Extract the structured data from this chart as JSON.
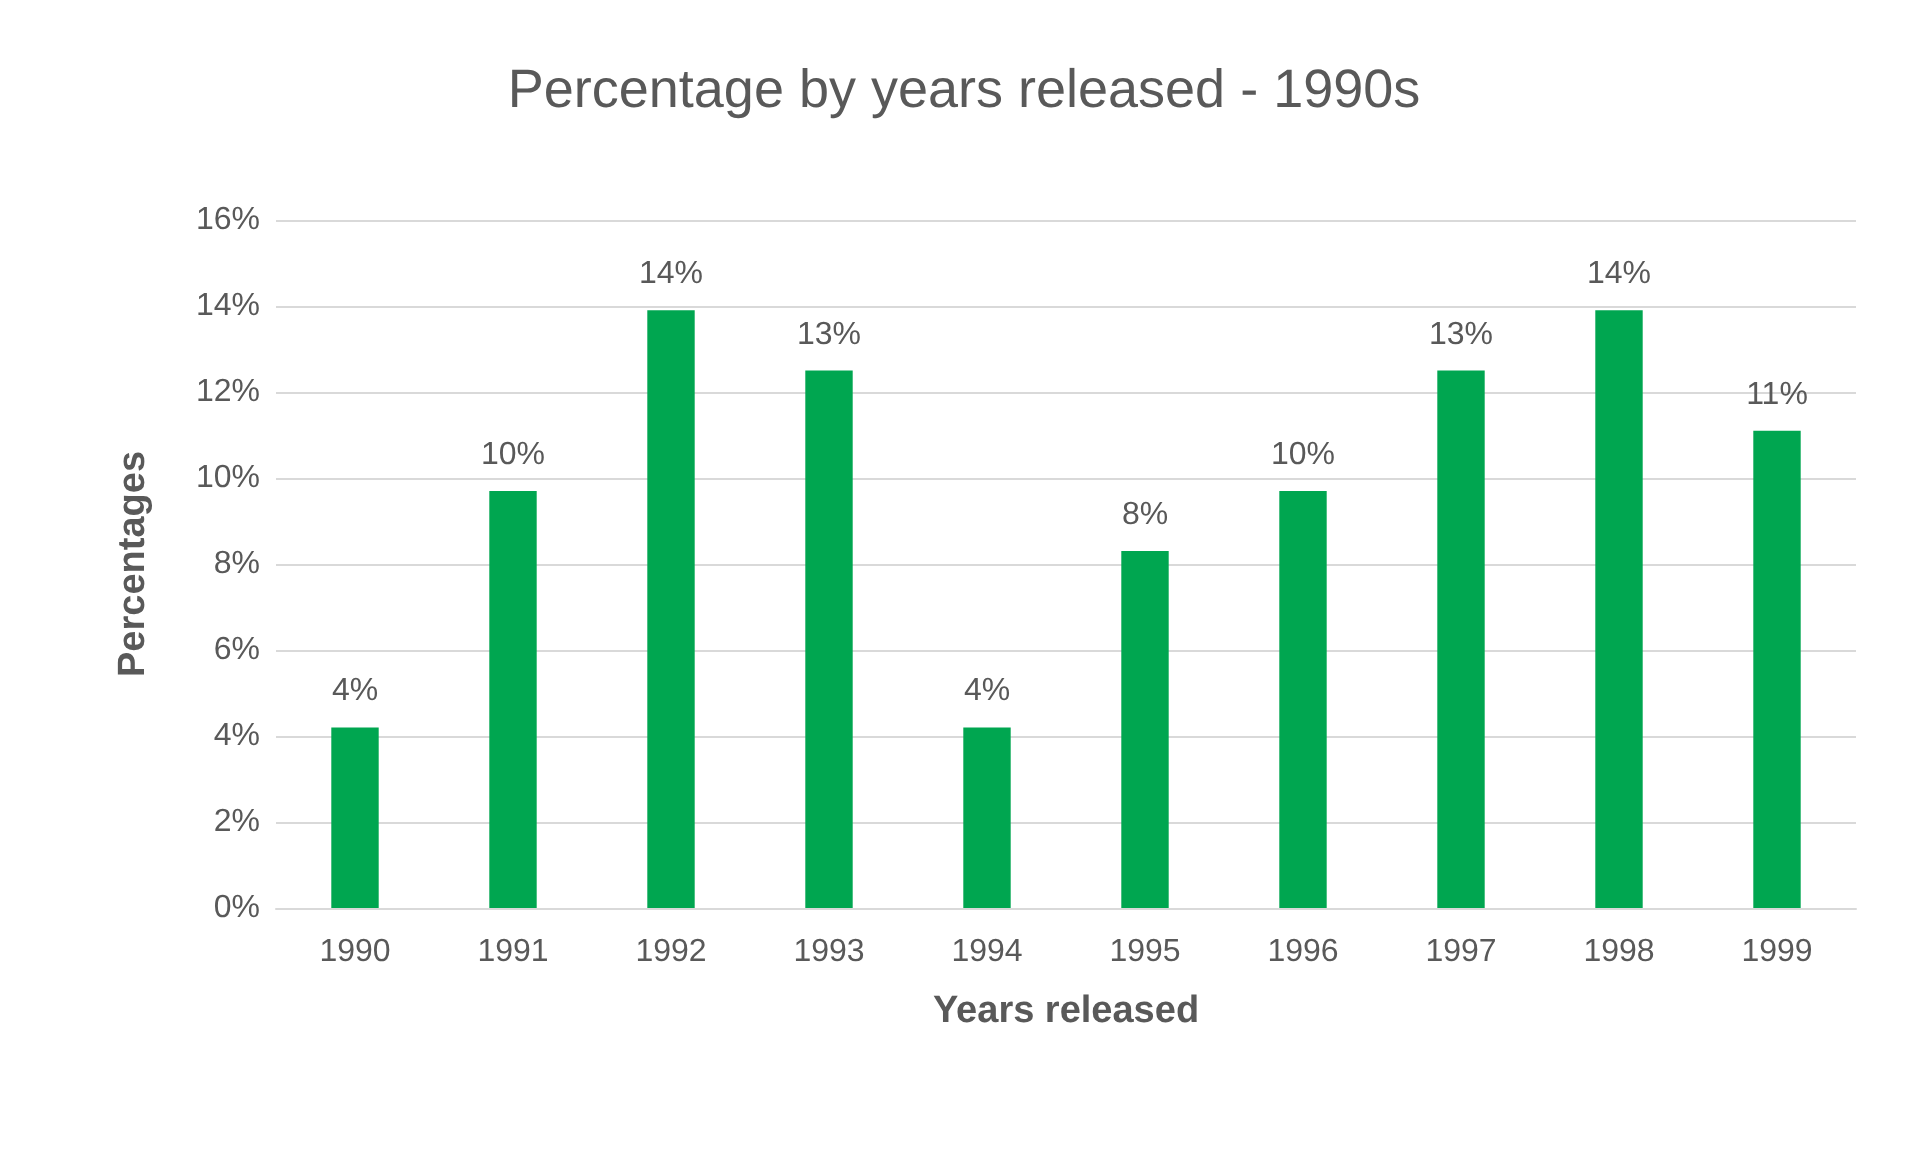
{
  "chart_data": {
    "type": "bar",
    "title": "Percentage by years released - 1990s",
    "xlabel": "Years released",
    "ylabel": "Percentages",
    "categories": [
      "1990",
      "1991",
      "1992",
      "1993",
      "1994",
      "1995",
      "1996",
      "1997",
      "1998",
      "1999"
    ],
    "values": [
      4.2,
      9.7,
      13.9,
      12.5,
      4.2,
      8.3,
      9.7,
      12.5,
      13.9,
      11.1
    ],
    "value_labels": [
      "4%",
      "10%",
      "14%",
      "13%",
      "4%",
      "8%",
      "10%",
      "13%",
      "14%",
      "11%"
    ],
    "color": "#00a650",
    "ylim": [
      0,
      16
    ],
    "yticks": [
      {
        "value": 0,
        "label": "0%"
      },
      {
        "value": 2,
        "label": "2%"
      },
      {
        "value": 4,
        "label": "4%"
      },
      {
        "value": 6,
        "label": "6%"
      },
      {
        "value": 8,
        "label": "8%"
      },
      {
        "value": 10,
        "label": "10%"
      },
      {
        "value": 12,
        "label": "12%"
      },
      {
        "value": 14,
        "label": "14%"
      },
      {
        "value": 16,
        "label": "16%"
      }
    ],
    "grid": "y"
  }
}
